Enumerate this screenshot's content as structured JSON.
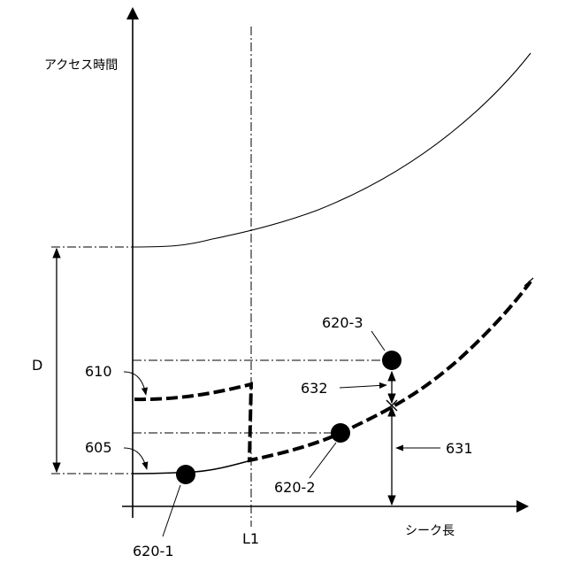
{
  "axes": {
    "y_label": "アクセス時間",
    "x_label": "シーク長"
  },
  "markers": {
    "L1": "L1",
    "D": "D"
  },
  "callouts": {
    "c610": "610",
    "c605": "605",
    "c620_1": "620-1",
    "c620_2": "620-2",
    "c620_3": "620-3",
    "c631": "631",
    "c632": "632"
  },
  "colors": {
    "ink": "#000000",
    "background": "#ffffff"
  }
}
